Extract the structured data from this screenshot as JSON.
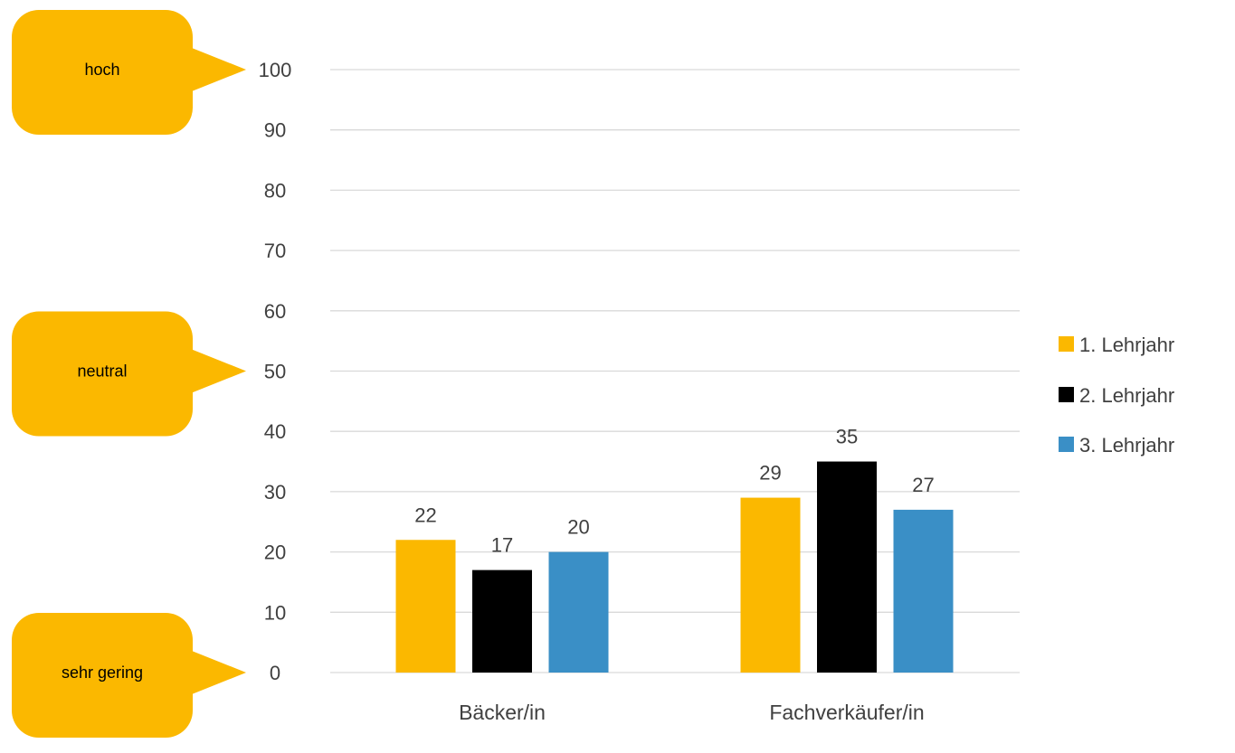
{
  "colors": {
    "gold": "#FBB800",
    "black": "#000000",
    "blue": "#3A8FC6",
    "grid": "#D9D9D9",
    "text": "#404040"
  },
  "bubbles": [
    {
      "label": "hoch",
      "value": 100
    },
    {
      "label": "neutral",
      "value": 50
    },
    {
      "label": "sehr gering",
      "value": 0
    }
  ],
  "chart_data": {
    "type": "bar",
    "categories": [
      "Bäcker/in",
      "Fachverkäufer/in"
    ],
    "series": [
      {
        "name": "1. Lehrjahr",
        "color": "#FBB800",
        "values": [
          22,
          29
        ]
      },
      {
        "name": "2. Lehrjahr",
        "color": "#000000",
        "values": [
          17,
          35
        ]
      },
      {
        "name": "3. Lehrjahr",
        "color": "#3A8FC6",
        "values": [
          20,
          27
        ]
      }
    ],
    "ylim": [
      0,
      100
    ],
    "yticks": [
      0,
      10,
      20,
      30,
      40,
      50,
      60,
      70,
      80,
      90,
      100
    ],
    "grid": true,
    "legend": "right",
    "data_labels": true
  }
}
